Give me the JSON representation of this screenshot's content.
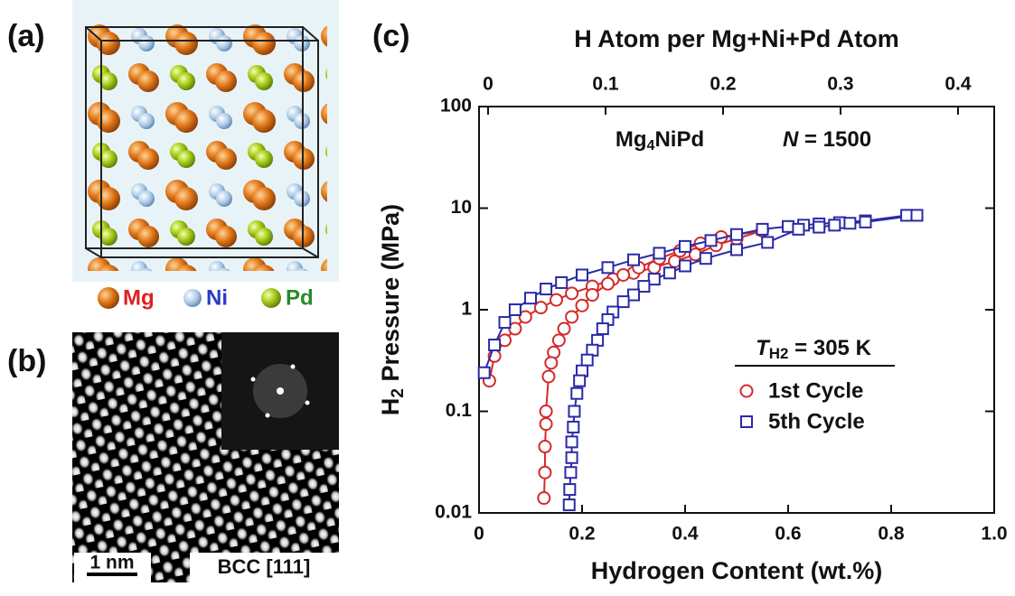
{
  "panels": {
    "a": {
      "label": "(a)",
      "legend": [
        "Mg",
        "Ni",
        "Pd"
      ]
    },
    "b": {
      "label": "(b)",
      "scale_bar": "1 nm",
      "zone_axis": "BCC [111]"
    }
  },
  "chart_data": {
    "type": "line",
    "panel_label": "(c)",
    "xlabel": "Hydrogen Content (wt.%)",
    "x2label": "H Atom per Mg+Ni+Pd Atom",
    "ylabel": {
      "symbol": "H",
      "subscript": "2",
      "text": " Pressure (MPa)"
    },
    "annotations": [
      {
        "parts": [
          "Mg",
          "4",
          "NiPd"
        ]
      },
      {
        "italic": "N",
        "text": " = 1500"
      }
    ],
    "legend_title": {
      "symbol": "T",
      "subscript": "H2",
      "text": " = 305 K"
    },
    "yscale": "log",
    "xlim": [
      0,
      1
    ],
    "xticks": [
      0,
      0.2,
      0.4,
      0.6,
      0.8,
      {
        "value": 1,
        "label": "1.0"
      }
    ],
    "x2lim": [
      -0.0077,
      0.4308
    ],
    "x2ticks": [
      0,
      0.1,
      0.2,
      0.3,
      0.4
    ],
    "ylim": [
      0.01,
      100
    ],
    "yticks": [
      0.01,
      0.1,
      1,
      10,
      100
    ],
    "series": [
      {
        "name": "1st Cycle",
        "color": "#d42a2a",
        "marker": "circle",
        "x": [
          0.02,
          0.03,
          0.05,
          0.07,
          0.09,
          0.12,
          0.15,
          0.18,
          0.22,
          0.26,
          0.3,
          0.34,
          0.38,
          0.42,
          0.46,
          0.5,
          0.55,
          0.47,
          0.43,
          0.39,
          0.35,
          0.31,
          0.28,
          0.25,
          0.22,
          0.2,
          0.18,
          0.165,
          0.155,
          0.145,
          0.14,
          0.135,
          0.13,
          0.13,
          0.128,
          0.128,
          0.126
        ],
        "values": [
          0.2,
          0.35,
          0.5,
          0.65,
          0.85,
          1.05,
          1.25,
          1.45,
          1.7,
          2.0,
          2.3,
          2.6,
          3.0,
          3.5,
          4.3,
          5.0,
          6.0,
          5.2,
          4.5,
          3.8,
          3.2,
          2.6,
          2.2,
          1.8,
          1.4,
          1.1,
          0.85,
          0.65,
          0.5,
          0.38,
          0.3,
          0.22,
          0.1,
          0.075,
          0.045,
          0.025,
          0.014
        ]
      },
      {
        "name": "5th Cycle",
        "color": "#2a2aa8",
        "marker": "square",
        "x": [
          0.01,
          0.03,
          0.05,
          0.07,
          0.1,
          0.13,
          0.16,
          0.2,
          0.25,
          0.3,
          0.35,
          0.4,
          0.45,
          0.5,
          0.55,
          0.6,
          0.63,
          0.66,
          0.7,
          0.75,
          0.83,
          0.85,
          0.75,
          0.72,
          0.69,
          0.66,
          0.62,
          0.56,
          0.5,
          0.44,
          0.4,
          0.37,
          0.34,
          0.32,
          0.3,
          0.28,
          0.26,
          0.25,
          0.24,
          0.23,
          0.22,
          0.21,
          0.2,
          0.195,
          0.19,
          0.185,
          0.183,
          0.18,
          0.18,
          0.178,
          0.176,
          0.175
        ],
        "values": [
          0.24,
          0.45,
          0.75,
          1.0,
          1.3,
          1.6,
          1.85,
          2.2,
          2.6,
          3.1,
          3.6,
          4.2,
          4.8,
          5.5,
          6.2,
          6.6,
          6.8,
          7.0,
          7.2,
          7.5,
          8.5,
          8.5,
          7.3,
          7.1,
          6.8,
          6.5,
          6.2,
          4.6,
          3.9,
          3.2,
          2.7,
          2.3,
          2.0,
          1.7,
          1.4,
          1.2,
          0.95,
          0.8,
          0.65,
          0.5,
          0.4,
          0.32,
          0.25,
          0.2,
          0.15,
          0.1,
          0.07,
          0.05,
          0.035,
          0.025,
          0.017,
          0.012
        ]
      }
    ]
  }
}
